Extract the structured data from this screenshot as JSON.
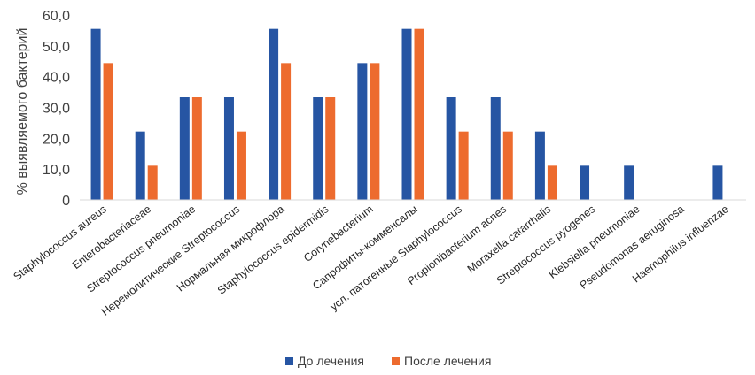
{
  "chart_data": {
    "type": "bar",
    "ylabel": "% выявляемого бактерий",
    "ylim": [
      0,
      60
    ],
    "ytick_step": 10,
    "y_tick_labels": [
      "0",
      "10,0",
      "20,0",
      "30,0",
      "40,0",
      "50,0",
      "60,0"
    ],
    "grid": false,
    "legend_position": "bottom",
    "categories": [
      "Staphylococcus aureus",
      "Enterobacteriaceae",
      "Streptococcus pneumoniae",
      "Неремолитические Streptococcus",
      "Нормальная микрофлора",
      "Staphylococcus epidermidis",
      "Corynebacterium",
      "Сапрофиты-комменсалы",
      "усл. патогенные Staphylococcus",
      "Propionibacterium acnes",
      "Moraxella catarrhalis",
      "Streptococcus pyogenes",
      "Klebsiella pneumoniae",
      "Pseudomonas aeruginosa",
      "Haemophilus influenzae"
    ],
    "series": [
      {
        "name": "До лечения",
        "color": "#2655A3",
        "values": [
          55.5,
          22.2,
          33.3,
          33.3,
          55.5,
          33.3,
          44.4,
          55.5,
          33.3,
          33.3,
          22.2,
          11.1,
          11.1,
          0,
          11.1
        ]
      },
      {
        "name": "После лечения",
        "color": "#ED6B2E",
        "values": [
          44.4,
          11.1,
          33.3,
          22.2,
          44.4,
          33.3,
          44.4,
          55.5,
          22.2,
          22.2,
          11.1,
          0,
          0,
          0,
          0
        ]
      }
    ]
  }
}
